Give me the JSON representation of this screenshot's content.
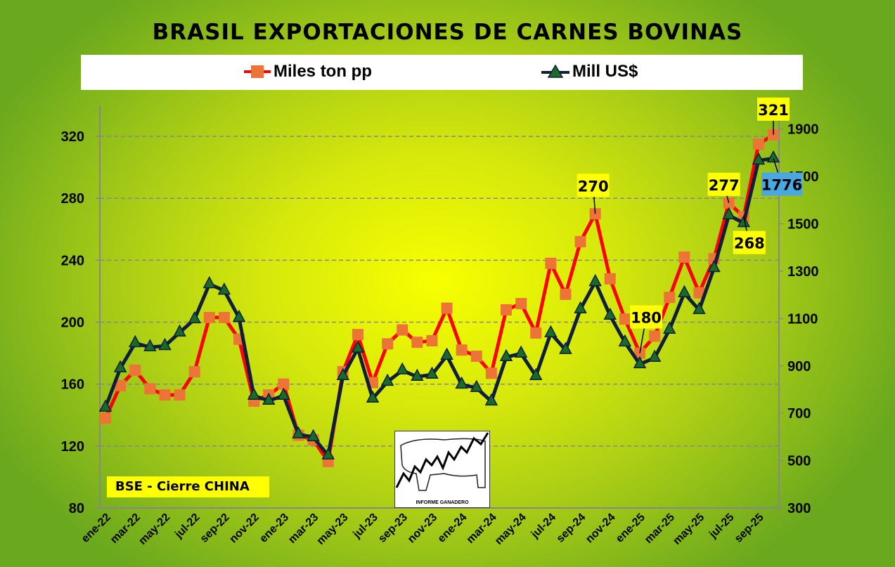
{
  "chart_data": {
    "type": "line",
    "title": "BRASIL EXPORTACIONES DE CARNES BOVINAS",
    "x": [
      "ene-22",
      "feb-22",
      "mar-22",
      "abr-22",
      "may-22",
      "jun-22",
      "jul-22",
      "ago-22",
      "sep-22",
      "oct-22",
      "nov-22",
      "dic-22",
      "ene-23",
      "feb-23",
      "mar-23",
      "abr-23",
      "may-23",
      "jun-23",
      "jul-23",
      "ago-23",
      "sep-23",
      "oct-23",
      "nov-23",
      "dic-23",
      "ene-24",
      "feb-24",
      "mar-24",
      "abr-24",
      "may-24",
      "jun-24",
      "jul-24",
      "ago-24",
      "sep-24",
      "oct-24",
      "nov-24",
      "dic-24",
      "ene-25",
      "feb-25",
      "mar-25",
      "abr-25",
      "may-25",
      "jun-25",
      "jul-25",
      "ago-25",
      "sep-25",
      "oct-25"
    ],
    "x_tick_labels": [
      "ene-22",
      "mar-22",
      "may-22",
      "jul-22",
      "sep-22",
      "nov-22",
      "ene-23",
      "mar-23",
      "may-23",
      "jul-23",
      "sep-23",
      "nov-23",
      "ene-24",
      "mar-24",
      "may-24",
      "jul-24",
      "sep-24",
      "nov-24",
      "ene-25",
      "mar-25",
      "may-25",
      "jul-25",
      "sep-25"
    ],
    "series": [
      {
        "name": "Miles ton pp",
        "axis": "left",
        "color": "#ff0000",
        "marker_color": "#ec7436",
        "marker": "square",
        "values": [
          138,
          159,
          169,
          157,
          153,
          153,
          168,
          203,
          203,
          189,
          149,
          153,
          160,
          127,
          124,
          110,
          168,
          192,
          161,
          186,
          195,
          187,
          188,
          209,
          182,
          178,
          167,
          208,
          212,
          193,
          238,
          218,
          252,
          270,
          228,
          202,
          180,
          191,
          216,
          242,
          219,
          241,
          277,
          268,
          315,
          321
        ]
      },
      {
        "name": "Mill US$",
        "axis": "right",
        "color": "#0f1f38",
        "marker_color": "#1a6a2a",
        "marker": "triangle",
        "values": [
          724,
          890,
          996,
          979,
          984,
          1041,
          1097,
          1245,
          1218,
          1103,
          774,
          753,
          774,
          611,
          599,
          522,
          857,
          973,
          762,
          833,
          881,
          854,
          863,
          943,
          821,
          807,
          750,
          937,
          952,
          857,
          1038,
          967,
          1139,
          1254,
          1112,
          999,
          907,
          934,
          1053,
          1207,
          1136,
          1313,
          1536,
          1503,
          1767,
          1776
        ]
      }
    ],
    "y_left": {
      "ylim": [
        80,
        340
      ],
      "ticks": [
        80,
        120,
        160,
        200,
        240,
        280,
        320
      ]
    },
    "y_right": {
      "ylim": [
        300,
        2000
      ],
      "ticks": [
        300,
        500,
        700,
        900,
        1100,
        1300,
        1500,
        1700,
        1900
      ]
    },
    "grid": "horizontal dashed",
    "legend_position": "top",
    "annotations": [
      {
        "series": 0,
        "index": 33,
        "text": "270",
        "bg": "#ffff00"
      },
      {
        "series": 0,
        "index": 36,
        "text": "180",
        "bg": "#ffff00"
      },
      {
        "series": 0,
        "index": 42,
        "text": "277",
        "bg": "#ffff00"
      },
      {
        "series": 0,
        "index": 43,
        "text": "268",
        "bg": "#ffff00"
      },
      {
        "series": 0,
        "index": 45,
        "text": "321",
        "bg": "#ffff00"
      },
      {
        "series": 1,
        "index": 45,
        "text": "1776",
        "bg": "#4aa8e0"
      }
    ]
  },
  "note": "BSE - Cierre CHINA",
  "logo_text": "INFORME GANADERO"
}
